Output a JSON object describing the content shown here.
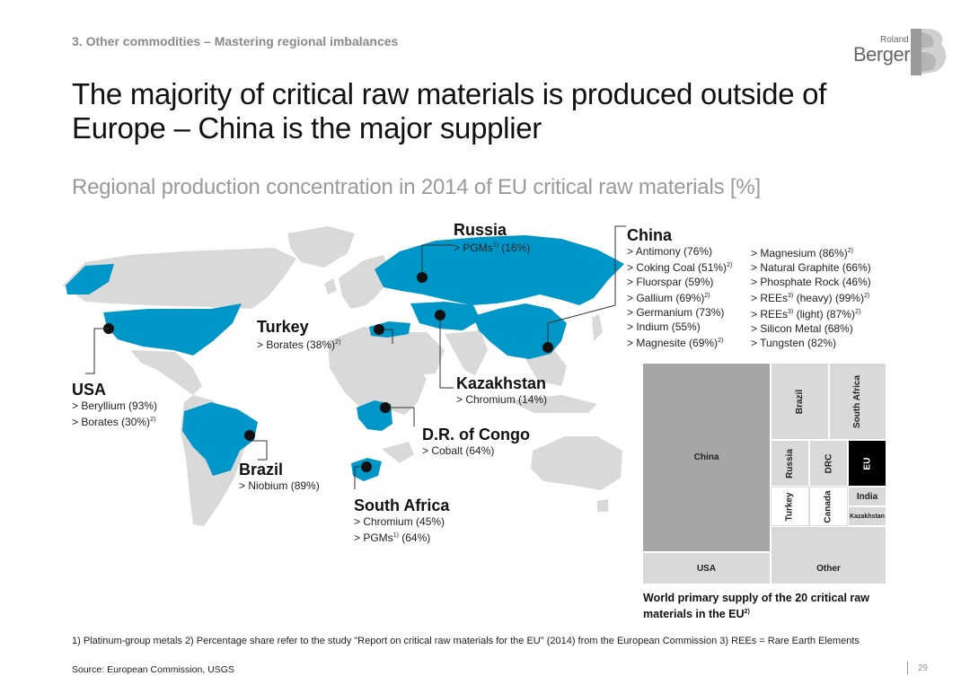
{
  "header": {
    "section": "3. Other commodities – Mastering regional imbalances",
    "title": "The majority of critical raw materials is produced outside of Europe – China is the major supplier",
    "subtitle": "Regional production concentration in 2014 of EU critical raw materials [%]",
    "logo_line1": "Roland",
    "logo_line2": "Berger"
  },
  "colors": {
    "highlight": "#0096c8",
    "land": "#d9d9d9",
    "marker": "#111111",
    "treemap_dark": "#a6a6a6",
    "treemap_light": "#d9d9d9",
    "treemap_eu": "#000000"
  },
  "callouts": {
    "russia": {
      "name": "Russia",
      "items": [
        {
          "text": "PGMs",
          "sup": "1)",
          "value": " (16%)"
        }
      ]
    },
    "china": {
      "name": "China",
      "items_col1": [
        {
          "text": "Antimony (76%)",
          "sup": ""
        },
        {
          "text": "Coking Coal (51%)",
          "sup": "2)"
        },
        {
          "text": "Fluorspar (59%)",
          "sup": ""
        },
        {
          "text": "Gallium (69%)",
          "sup": "2)"
        },
        {
          "text": "Germanium (73%)",
          "sup": ""
        },
        {
          "text": "Indium (55%)",
          "sup": ""
        },
        {
          "text": "Magnesite (69%)",
          "sup": "2)"
        }
      ],
      "items_col2": [
        {
          "text": "Magnesium (86%)",
          "sup": "2)"
        },
        {
          "text": "Natural Graphite (66%)",
          "sup": ""
        },
        {
          "text": "Phosphate Rock (46%)",
          "sup": ""
        },
        {
          "text": "REEs",
          "sup": "3)",
          "value": " (heavy) (99%)",
          "sup2": "2)"
        },
        {
          "text": "REEs",
          "sup": "3)",
          "value": " (light) (87%)",
          "sup2": "2)"
        },
        {
          "text": "Silicon Metal (68%)",
          "sup": ""
        },
        {
          "text": "Tungsten (82%)",
          "sup": ""
        }
      ]
    },
    "turkey": {
      "name": "Turkey",
      "items": [
        {
          "text": "Borates (38%)",
          "sup": "2)"
        }
      ]
    },
    "usa": {
      "name": "USA",
      "items": [
        {
          "text": "Beryllium (93%)",
          "sup": ""
        },
        {
          "text": "Borates (30%)",
          "sup": "2)"
        }
      ]
    },
    "kazakhstan": {
      "name": "Kazakhstan",
      "items": [
        {
          "text": "Chromium (14%)",
          "sup": ""
        }
      ]
    },
    "drc": {
      "name": "D.R. of Congo",
      "items": [
        {
          "text": "Cobalt (64%)",
          "sup": ""
        }
      ]
    },
    "brazil": {
      "name": "Brazil",
      "items": [
        {
          "text": "Niobium (89%)",
          "sup": ""
        }
      ]
    },
    "south_africa": {
      "name": "South Africa",
      "items": [
        {
          "text": "Chromium (45%)",
          "sup": ""
        },
        {
          "text": "PGMs",
          "sup": "1)",
          "value": " (64%)"
        }
      ]
    }
  },
  "treemap": {
    "tiles": [
      {
        "label": "China"
      },
      {
        "label": "Brazil"
      },
      {
        "label": "South Africa"
      },
      {
        "label": "Russia"
      },
      {
        "label": "DRC"
      },
      {
        "label": "EU"
      },
      {
        "label": "Turkey"
      },
      {
        "label": "Canada"
      },
      {
        "label": "India"
      },
      {
        "label": "Kazakhstan"
      },
      {
        "label": "USA"
      },
      {
        "label": "Other"
      }
    ],
    "caption": "World primary supply of the 20 critical raw materials in the EU",
    "caption_sup": "2)"
  },
  "footer": {
    "footnotes": "1) Platinum-group metals   2) Percentage share refer to the study \"Report on critical raw materials for the EU\" (2014) from the European Commission   3) REEs = Rare Earth Elements",
    "source": "Source: European Commission, USGS",
    "page": "29"
  }
}
